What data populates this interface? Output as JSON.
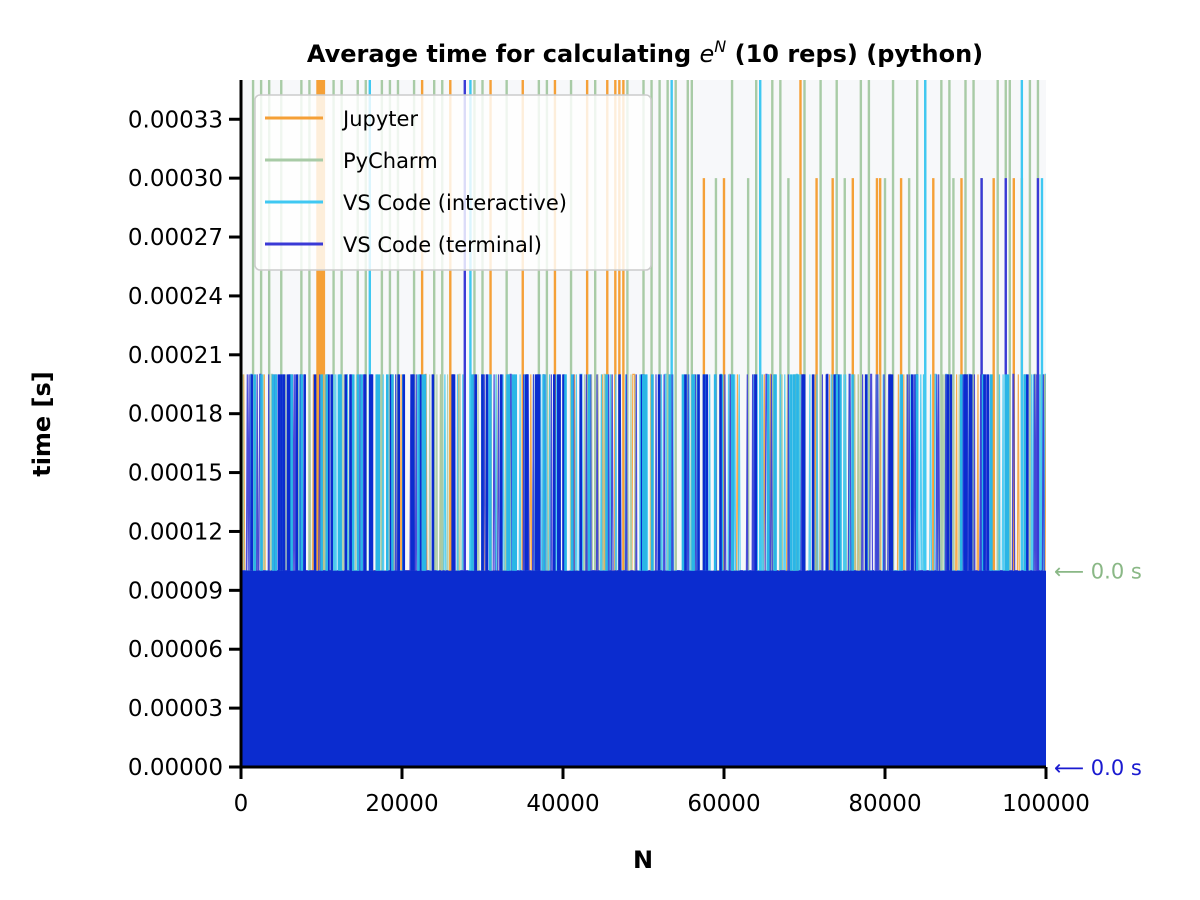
{
  "chart_data": {
    "type": "line",
    "title_prefix": "Average time for calculating ",
    "title_base": "e",
    "title_sup": "N",
    "title_suffix": " (10 reps) (python)",
    "xlabel": "N",
    "ylabel": "time [s]",
    "xlim": [
      0,
      100000
    ],
    "ylim": [
      0,
      0.00035
    ],
    "xticks": [
      0,
      20000,
      40000,
      60000,
      80000,
      100000
    ],
    "xtick_labels": [
      "0",
      "20000",
      "40000",
      "60000",
      "80000",
      "100000"
    ],
    "yticks": [
      0,
      3e-05,
      6e-05,
      9e-05,
      0.00012,
      0.00015,
      0.00018,
      0.00021,
      0.00024,
      0.00027,
      0.0003,
      0.00033
    ],
    "ytick_labels": [
      "0.00000",
      "0.00003",
      "0.00006",
      "0.00009",
      "0.00012",
      "0.00015",
      "0.00018",
      "0.00021",
      "0.00024",
      "0.00027",
      "0.00030",
      "0.00033"
    ],
    "grid": false,
    "legend_position": "top-left",
    "series": [
      {
        "name": "Jupyter",
        "color": "#f5a037",
        "baseline": 0.0001,
        "level": 0.0002,
        "spikes": [
          9500,
          9700,
          9900,
          10100,
          10300,
          22500,
          26000,
          31000,
          35000,
          39000,
          43000,
          45500,
          46500,
          47000,
          47500,
          57500,
          60000,
          69500,
          71500,
          73500,
          76000,
          79000,
          79400,
          82000,
          86000,
          89500,
          93500,
          96000,
          97000
        ],
        "spike_heights": [
          0.00035,
          0.00035,
          0.00035,
          0.00035,
          0.00035,
          0.00035,
          0.00035,
          0.00035,
          0.00035,
          0.00035,
          0.00035,
          0.00035,
          0.00035,
          0.00035,
          0.00035,
          0.0003,
          0.0003,
          0.00035,
          0.0003,
          0.0003,
          0.0003,
          0.0003,
          0.0003,
          0.0003,
          0.0003,
          0.0003,
          0.0003,
          0.0003,
          0.0003
        ]
      },
      {
        "name": "PyCharm",
        "color": "#a8cba6",
        "baseline": 0.0001,
        "level": 0.0002,
        "spikes": [
          1500,
          2500,
          3500,
          5000,
          7500,
          8500,
          11500,
          12500,
          14500,
          15500,
          17500,
          18500,
          19500,
          21500,
          24000,
          25000,
          29000,
          30000,
          33000,
          37000,
          38000,
          41000,
          44000,
          48000,
          50000,
          51000,
          52000,
          53000,
          54000,
          55500,
          56000,
          59000,
          61000,
          63000,
          64000,
          66000,
          67000,
          68000,
          70000,
          72000,
          74000,
          75000,
          77000,
          78000,
          80000,
          81000,
          83000,
          84000,
          85000,
          87000,
          88000,
          88500,
          90000,
          91000,
          92000,
          94000,
          95000,
          95500,
          98000,
          99000
        ],
        "spike_heights": [
          0.00035,
          0.00035,
          0.00035,
          0.00035,
          0.00035,
          0.00035,
          0.00035,
          0.00035,
          0.00035,
          0.00035,
          0.00035,
          0.00035,
          0.00035,
          0.00035,
          0.00035,
          0.00035,
          0.00035,
          0.00035,
          0.00035,
          0.00035,
          0.00035,
          0.00035,
          0.00035,
          0.00035,
          0.00035,
          0.00035,
          0.00035,
          0.00035,
          0.00035,
          0.00035,
          0.00035,
          0.0003,
          0.00035,
          0.0003,
          0.00035,
          0.00035,
          0.00035,
          0.0003,
          0.00035,
          0.00035,
          0.00035,
          0.0003,
          0.00035,
          0.00035,
          0.0003,
          0.00035,
          0.0003,
          0.00035,
          0.00035,
          0.00035,
          0.00035,
          0.0003,
          0.00035,
          0.00035,
          0.0003,
          0.00035,
          0.00035,
          0.00035,
          0.00035,
          0.00035
        ]
      },
      {
        "name": "VS Code (interactive)",
        "color": "#3fc8f2",
        "baseline": 0.0001,
        "level": 0.0002,
        "spikes": [
          16000,
          28500,
          53500,
          64500,
          85000,
          97000,
          99500
        ],
        "spike_heights": [
          0.00035,
          0.00035,
          0.00035,
          0.00035,
          0.00035,
          0.00035,
          0.0003
        ]
      },
      {
        "name": "VS Code (terminal)",
        "color": "#3a3ad6",
        "baseline": 0.0001,
        "level": 0.0002,
        "spikes": [
          27800,
          92000,
          95000,
          99000
        ],
        "spike_heights": [
          0.00035,
          0.0003,
          0.0003,
          0.0003
        ]
      }
    ],
    "annotations": [
      {
        "text": "⟵ 0.0 s",
        "y": 0.0001,
        "color": "#8ab886"
      },
      {
        "text": "⟵ 0.0 s",
        "y": 0.0,
        "color": "#1a1ad0"
      }
    ]
  }
}
